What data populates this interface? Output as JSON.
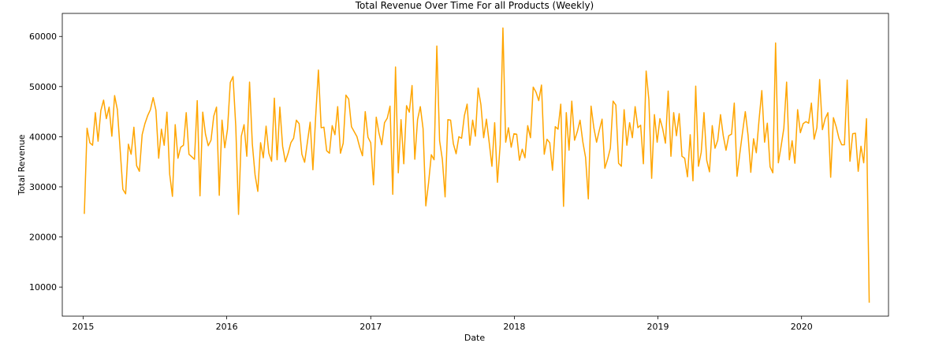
{
  "chart_data": {
    "type": "line",
    "title": "Total Revenue Over Time For all Products (Weekly)",
    "xlabel": "Date",
    "ylabel": "Total Revenue",
    "x_start": "2015-01-04",
    "x_interval": "weekly",
    "xlim": [
      "2014-11-09",
      "2020-08-09"
    ],
    "ylim": [
      4200,
      64600
    ],
    "x_ticks": [
      "2015",
      "2016",
      "2017",
      "2018",
      "2019",
      "2020"
    ],
    "y_ticks": [
      10000,
      20000,
      30000,
      40000,
      50000,
      60000
    ],
    "grid": false,
    "line_color": "#FFA500",
    "series": [
      {
        "values": [
          24600,
          41700,
          38800,
          38300,
          44800,
          39100,
          45200,
          47300,
          43600,
          45900,
          40100,
          48200,
          45400,
          37500,
          29500,
          28600,
          38500,
          36500,
          41900,
          34200,
          33100,
          40400,
          42600,
          44200,
          45400,
          47800,
          45300,
          35700,
          41500,
          38300,
          44900,
          32500,
          28100,
          42400,
          35700,
          37900,
          38300,
          44800,
          36500,
          36000,
          35500,
          47200,
          28200,
          44900,
          40500,
          38200,
          39300,
          44100,
          45900,
          28300,
          43300,
          37800,
          41500,
          50800,
          52000,
          42000,
          24500,
          40100,
          42400,
          36100,
          50900,
          38600,
          32400,
          29100,
          38800,
          35800,
          42100,
          36700,
          35100,
          47700,
          35400,
          45900,
          38100,
          35000,
          36700,
          38800,
          39700,
          43300,
          42600,
          36500,
          34900,
          38900,
          42900,
          33400,
          44000,
          53300,
          41800,
          41900,
          37200,
          36700,
          42200,
          40400,
          46000,
          36700,
          38700,
          48300,
          47500,
          42000,
          41000,
          40000,
          37900,
          36200,
          45000,
          39900,
          38800,
          30400,
          43900,
          40700,
          38400,
          42800,
          43700,
          46100,
          28500,
          53900,
          32800,
          43400,
          34600,
          46200,
          44900,
          50200,
          35500,
          43400,
          46000,
          41600,
          26200,
          30800,
          36400,
          35400,
          58100,
          39200,
          35500,
          28000,
          43400,
          43300,
          38600,
          36600,
          40000,
          39700,
          44200,
          46500,
          38300,
          43300,
          40100,
          49700,
          46400,
          39800,
          43500,
          38900,
          34100,
          42800,
          30900,
          38400,
          61700,
          38900,
          41800,
          37900,
          40600,
          40500,
          35300,
          37500,
          35800,
          42200,
          39800,
          49900,
          48900,
          47200,
          50300,
          36500,
          39500,
          38800,
          33300,
          42000,
          41500,
          46500,
          26100,
          44800,
          37300,
          47100,
          39300,
          41000,
          43300,
          39000,
          35900,
          27600,
          46100,
          41800,
          38900,
          41300,
          43500,
          33700,
          35500,
          37700,
          47100,
          46300,
          34700,
          34100,
          45400,
          38300,
          42800,
          39800,
          46000,
          41800,
          42300,
          34600,
          53100,
          47300,
          31700,
          44400,
          38900,
          43600,
          41600,
          38700,
          49100,
          36100,
          44800,
          40200,
          44600,
          36100,
          35700,
          32000,
          40400,
          31200,
          50100,
          34100,
          36900,
          44800,
          35300,
          33000,
          42200,
          37700,
          39300,
          44400,
          40200,
          37300,
          40200,
          40500,
          46700,
          32100,
          36600,
          40900,
          45000,
          40300,
          32900,
          39600,
          36800,
          43400,
          49200,
          38900,
          42700,
          34000,
          32800,
          58700,
          34800,
          38100,
          41700,
          50900,
          35400,
          39200,
          34700,
          45400,
          40800,
          42600,
          43000,
          42700,
          46700,
          39500,
          41800,
          51400,
          41400,
          43600,
          44800,
          31900,
          43800,
          42000,
          39700,
          38400,
          38400,
          51300,
          35100,
          40600,
          40700,
          33100,
          38100,
          34800,
          43600,
          6900
        ]
      }
    ]
  }
}
